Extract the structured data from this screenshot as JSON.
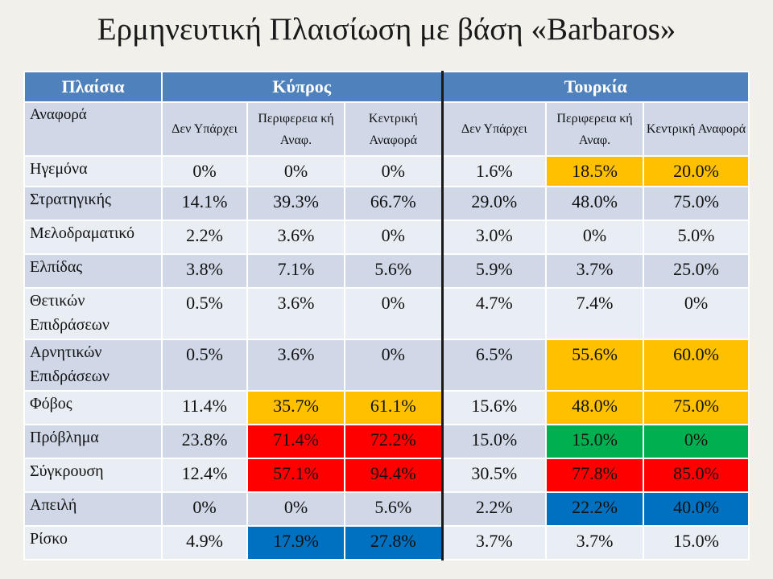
{
  "title": "Ερμηνευτική Πλαισίωση με βάση «Barbaros»",
  "header": {
    "col1": "Πλαίσια",
    "group1": "Κύπρος",
    "group2": "Τουρκία"
  },
  "subheader": {
    "label": "Αναφορά",
    "cols": [
      "Δεν Υπάρχει",
      "Περιφερεια κή Αναφ.",
      "Κεντρική Αναφορά",
      "Δεν Υπάρχει",
      "Περιφερεια κή Αναφ.",
      "Κεντρική Αναφορά"
    ]
  },
  "rows": [
    {
      "label": "Ηγεμόνα",
      "values": [
        "0%",
        "0%",
        "0%",
        "1.6%",
        "18.5%",
        "20.0%"
      ],
      "colors": [
        "",
        "",
        "",
        "",
        "orange",
        "orange"
      ]
    },
    {
      "label": "Στρατηγικής",
      "values": [
        "14.1%",
        "39.3%",
        "66.7%",
        "29.0%",
        "48.0%",
        "75.0%"
      ],
      "colors": [
        "",
        "",
        "",
        "",
        "",
        ""
      ]
    },
    {
      "label": "Μελοδραματικό",
      "values": [
        "2.2%",
        "3.6%",
        "0%",
        "3.0%",
        "0%",
        "5.0%"
      ],
      "colors": [
        "",
        "",
        "",
        "",
        "",
        ""
      ]
    },
    {
      "label": "Ελπίδας",
      "values": [
        "3.8%",
        "7.1%",
        "5.6%",
        "5.9%",
        "3.7%",
        "25.0%"
      ],
      "colors": [
        "",
        "",
        "",
        "",
        "",
        ""
      ]
    },
    {
      "label": "Θετικών Επιδράσεων",
      "values": [
        "0.5%",
        "3.6%",
        "0%",
        "4.7%",
        "7.4%",
        "0%"
      ],
      "colors": [
        "",
        "",
        "",
        "",
        "",
        ""
      ]
    },
    {
      "label": "Αρνητικών Επιδράσεων",
      "values": [
        "0.5%",
        "3.6%",
        "0%",
        "6.5%",
        "55.6%",
        "60.0%"
      ],
      "colors": [
        "",
        "",
        "",
        "",
        "orange",
        "orange"
      ]
    },
    {
      "label": "Φόβος",
      "values": [
        "11.4%",
        "35.7%",
        "61.1%",
        "15.6%",
        "48.0%",
        "75.0%"
      ],
      "colors": [
        "",
        "orange",
        "orange",
        "",
        "orange",
        "orange"
      ]
    },
    {
      "label": "Πρόβλημα",
      "values": [
        "23.8%",
        "71.4%",
        "72.2%",
        "15.0%",
        "15.0%",
        "0%"
      ],
      "colors": [
        "",
        "red",
        "red",
        "",
        "green",
        "green"
      ]
    },
    {
      "label": "Σύγκρουση",
      "values": [
        "12.4%",
        "57.1%",
        "94.4%",
        "30.5%",
        "77.8%",
        "85.0%"
      ],
      "colors": [
        "",
        "red",
        "red",
        "",
        "red",
        "red"
      ]
    },
    {
      "label": "Απειλή",
      "values": [
        "0%",
        "0%",
        "5.6%",
        "2.2%",
        "22.2%",
        "40.0%"
      ],
      "colors": [
        "",
        "",
        "",
        "",
        "blue",
        "blue"
      ]
    },
    {
      "label": "Ρίσκο",
      "values": [
        "4.9%",
        "17.9%",
        "27.8%",
        "3.7%",
        "3.7%",
        "15.0%"
      ],
      "colors": [
        "",
        "blue",
        "blue",
        "",
        "",
        ""
      ]
    }
  ]
}
